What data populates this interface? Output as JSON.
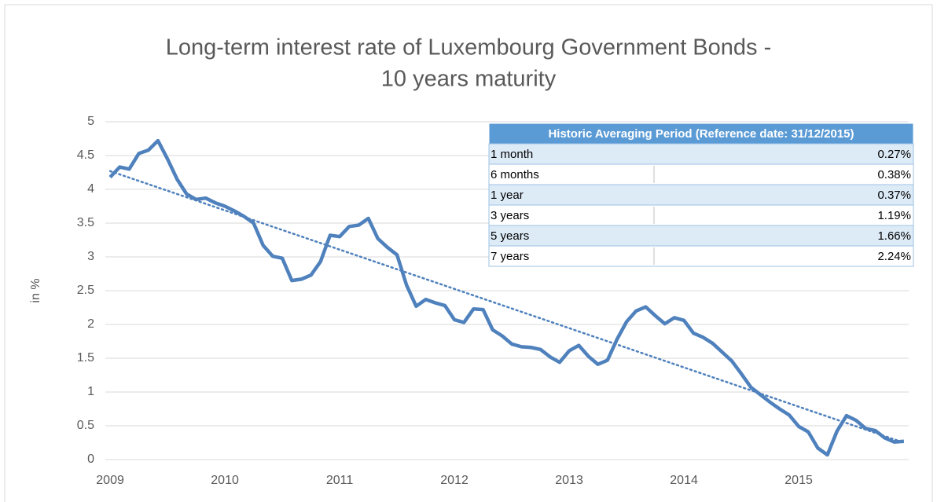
{
  "chart_data": {
    "type": "line",
    "title": [
      "Long-term interest rate of Luxembourg Government Bonds -",
      "10 years maturity"
    ],
    "ylabel": "in %",
    "categories": [
      "2009",
      null,
      null,
      null,
      null,
      null,
      null,
      null,
      null,
      null,
      null,
      null,
      "2010",
      null,
      null,
      null,
      null,
      null,
      null,
      null,
      null,
      null,
      null,
      null,
      "2011",
      null,
      null,
      null,
      null,
      null,
      null,
      null,
      null,
      null,
      null,
      null,
      "2012",
      null,
      null,
      null,
      null,
      null,
      null,
      null,
      null,
      null,
      null,
      null,
      "2013",
      null,
      null,
      null,
      null,
      null,
      null,
      null,
      null,
      null,
      null,
      null,
      "2014",
      null,
      null,
      null,
      null,
      null,
      null,
      null,
      null,
      null,
      null,
      null,
      "2015",
      null,
      null,
      null,
      null,
      null,
      null,
      null,
      null,
      null,
      null,
      null
    ],
    "series": [
      {
        "color": "#4f81bd",
        "values": [
          4.18,
          4.33,
          4.3,
          4.53,
          4.58,
          4.72,
          4.45,
          4.15,
          3.93,
          3.85,
          3.87,
          3.8,
          3.75,
          3.68,
          3.6,
          3.5,
          3.17,
          3.01,
          2.98,
          2.65,
          2.67,
          2.73,
          2.93,
          3.32,
          3.3,
          3.45,
          3.47,
          3.57,
          3.27,
          3.14,
          3.03,
          2.58,
          2.27,
          2.37,
          2.32,
          2.28,
          2.07,
          2.03,
          2.23,
          2.22,
          1.92,
          1.83,
          1.71,
          1.67,
          1.66,
          1.63,
          1.52,
          1.44,
          1.61,
          1.69,
          1.53,
          1.41,
          1.47,
          1.78,
          2.04,
          2.2,
          2.26,
          2.13,
          2.01,
          2.1,
          2.06,
          1.87,
          1.81,
          1.72,
          1.59,
          1.46,
          1.27,
          1.07,
          0.96,
          0.85,
          0.75,
          0.66,
          0.49,
          0.41,
          0.17,
          0.07,
          0.42,
          0.65,
          0.58,
          0.46,
          0.43,
          0.32,
          0.26,
          0.27
        ]
      }
    ],
    "trendline": [
      4.27,
      0.25
    ],
    "ylim": [
      0,
      5
    ],
    "yticks": [
      0,
      0.5,
      1,
      1.5,
      2,
      2.5,
      3,
      3.5,
      4,
      4.5,
      5
    ],
    "grid": true,
    "table": {
      "header": "Historic Averaging Period (Reference date: 31/12/2015)",
      "rows": [
        [
          "1 month",
          "0.27%"
        ],
        [
          "6 months",
          "0.38%"
        ],
        [
          "1 year",
          "0.37%"
        ],
        [
          "3 years",
          "1.19%"
        ],
        [
          "5 years",
          "1.66%"
        ],
        [
          "7 years",
          "2.24%"
        ]
      ]
    }
  }
}
